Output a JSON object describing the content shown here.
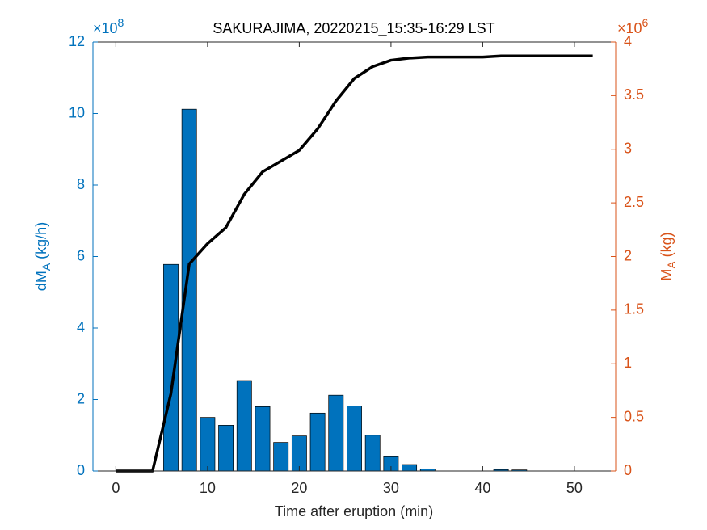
{
  "chart_data": {
    "type": "combo",
    "title": "SAKURAJIMA, 20220215_15:35-16:29 LST",
    "xlabel": "Time after eruption (min)",
    "ylabel": {
      "main": "dM",
      "sub": "A",
      "unit": " (kg/h)"
    },
    "y2label": {
      "main": "M",
      "sub": "A",
      "unit": " (kg)"
    },
    "y_multiplier": {
      "base": "×10",
      "exponent": "8"
    },
    "y2_multiplier": {
      "base": "×10",
      "exponent": "6"
    },
    "x": [
      0,
      2,
      4,
      6,
      8,
      10,
      12,
      14,
      16,
      18,
      20,
      22,
      24,
      26,
      28,
      30,
      32,
      34,
      36,
      38,
      40,
      42,
      44,
      46,
      48,
      50,
      52
    ],
    "xlim": [
      -2.5,
      54.5
    ],
    "xticks": [
      0,
      10,
      20,
      30,
      40,
      50
    ],
    "ylim": [
      0,
      12
    ],
    "yticks": [
      0,
      2,
      4,
      6,
      8,
      10,
      12
    ],
    "y2lim": [
      0,
      4
    ],
    "y2ticks": [
      0,
      0.5,
      1,
      1.5,
      2,
      2.5,
      3,
      3.5,
      4
    ],
    "y_color": "#0072BD",
    "y2_color": "#D95319",
    "series": [
      {
        "type": "bar",
        "color": "#0072BD",
        "values": [
          0,
          0,
          0,
          5.78,
          10.12,
          1.5,
          1.28,
          2.53,
          1.8,
          0.8,
          0.98,
          1.62,
          2.12,
          1.82,
          1.0,
          0.4,
          0.18,
          0.06,
          0,
          0,
          0,
          0.04,
          0.03,
          0,
          0,
          0,
          0
        ]
      },
      {
        "type": "line",
        "axis": "y2",
        "color": "#000000",
        "values": [
          0,
          0,
          0,
          0.72,
          1.93,
          2.12,
          2.27,
          2.58,
          2.79,
          2.89,
          2.99,
          3.19,
          3.45,
          3.66,
          3.77,
          3.83,
          3.85,
          3.86,
          3.86,
          3.86,
          3.86,
          3.87,
          3.87,
          3.87,
          3.87,
          3.87,
          3.87
        ]
      }
    ]
  }
}
